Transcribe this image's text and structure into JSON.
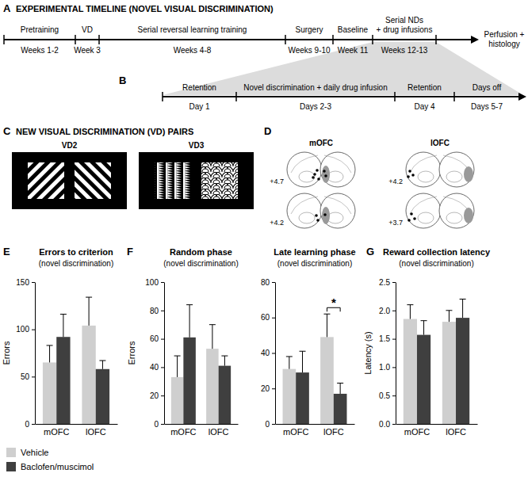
{
  "panels": {
    "A": {
      "label": "A",
      "title": "EXPERIMENTAL TIMELINE (NOVEL VISUAL DISCRIMINATION)",
      "stages": [
        {
          "name": [
            "Pretraining"
          ],
          "period": "Weeks 1-2"
        },
        {
          "name": [
            "VD"
          ],
          "period": "Week 3"
        },
        {
          "name": [
            "Serial reversal learning training"
          ],
          "period": "Weeks 4-8"
        },
        {
          "name": [
            "Surgery"
          ],
          "period": "Weeks 9-10"
        },
        {
          "name": [
            "Baseline"
          ],
          "period": "Week 11"
        },
        {
          "name": [
            "Serial NDs",
            "+ drug infusions"
          ],
          "period": "Weeks 12-13"
        },
        {
          "name": [
            "Perfusion +",
            "histology"
          ]
        }
      ]
    },
    "B": {
      "label": "B",
      "stages": [
        {
          "name": [
            "Retention"
          ],
          "period": "Day 1"
        },
        {
          "name": [
            "Novel discrimination + daily drug infusion"
          ],
          "period": "Days 2-3"
        },
        {
          "name": [
            "Retention"
          ],
          "period": "Day 4"
        },
        {
          "name": [
            "Days off"
          ],
          "period": "Days 5-7"
        }
      ]
    },
    "C": {
      "label": "C",
      "title": "NEW VISUAL DISCRIMINATION (VD) PAIRS",
      "pairs": [
        "VD2",
        "VD3"
      ]
    },
    "D": {
      "label": "D",
      "regions": [
        {
          "name": "mOFC",
          "levels": [
            "+4.7",
            "+4.2"
          ]
        },
        {
          "name": "lOFC",
          "levels": [
            "+4.2",
            "+3.7"
          ]
        }
      ]
    },
    "E": {
      "label": "E"
    },
    "F": {
      "label": "F"
    },
    "G": {
      "label": "G"
    }
  },
  "chart_data": [
    {
      "type": "bar",
      "title": "Errors to criterion",
      "subtitle": "(novel discrimination)",
      "y_label": "Errors",
      "categories": [
        "mOFC",
        "lOFC"
      ],
      "series": [
        {
          "name": "Vehicle",
          "color": "#cfcfcf",
          "values": [
            65,
            104
          ],
          "errors": [
            18,
            30
          ]
        },
        {
          "name": "Baclofen/muscimol",
          "color": "#3f3f3f",
          "values": [
            92,
            58
          ],
          "errors": [
            24,
            9
          ]
        }
      ],
      "ylim": [
        0,
        150
      ],
      "yticks": [
        0,
        50,
        100,
        150
      ],
      "legend": "lower left"
    },
    {
      "type": "bar",
      "title": "Random phase",
      "subtitle": "(novel discrimination)",
      "y_label": "Errors",
      "categories": [
        "mOFC",
        "lOFC"
      ],
      "series": [
        {
          "name": "Vehicle",
          "color": "#cfcfcf",
          "values": [
            33,
            53
          ],
          "errors": [
            15,
            17
          ]
        },
        {
          "name": "Baclofen/muscimol",
          "color": "#3f3f3f",
          "values": [
            61,
            41
          ],
          "errors": [
            23,
            7
          ]
        }
      ],
      "ylim": [
        0,
        100
      ],
      "yticks": [
        0,
        20,
        40,
        60,
        80,
        100
      ]
    },
    {
      "type": "bar",
      "title": "Late learning phase",
      "subtitle": "(novel discrimination)",
      "categories": [
        "mOFC",
        "lOFC"
      ],
      "series": [
        {
          "name": "Vehicle",
          "color": "#cfcfcf",
          "values": [
            31,
            49
          ],
          "errors": [
            7,
            13
          ]
        },
        {
          "name": "Baclofen/muscimol",
          "color": "#3f3f3f",
          "values": [
            29,
            17
          ],
          "errors": [
            12,
            6
          ]
        }
      ],
      "ylim": [
        0,
        80
      ],
      "yticks": [
        0,
        20,
        40,
        60,
        80
      ],
      "annotations": [
        {
          "text": "*",
          "category": "lOFC"
        }
      ]
    },
    {
      "type": "bar",
      "title": "Reward collection latency",
      "subtitle": "(novel discrimination)",
      "y_label": "Latency (s)",
      "categories": [
        "mOFC",
        "lOFC"
      ],
      "series": [
        {
          "name": "Vehicle",
          "color": "#cfcfcf",
          "values": [
            1.85,
            1.8
          ],
          "errors": [
            0.25,
            0.2
          ]
        },
        {
          "name": "Baclofen/muscimol",
          "color": "#3f3f3f",
          "values": [
            1.57,
            1.87
          ],
          "errors": [
            0.25,
            0.33
          ]
        }
      ],
      "ylim": [
        0,
        2.5
      ],
      "yticks": [
        {
          "value": 0,
          "label": "0.0"
        },
        0.5,
        {
          "value": 1,
          "label": "1.0"
        },
        1.5,
        {
          "value": 2,
          "label": "2.0"
        },
        2.5
      ]
    }
  ]
}
